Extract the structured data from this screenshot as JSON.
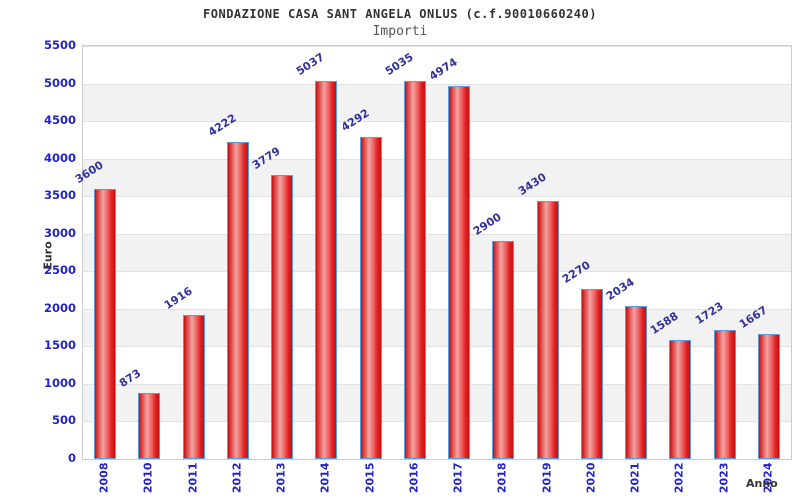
{
  "chart_data": {
    "type": "bar",
    "title": "FONDAZIONE CASA SANT ANGELA ONLUS (c.f.90010660240)",
    "subtitle": "Importi",
    "xlabel": "Anno",
    "ylabel": "Euro",
    "categories": [
      "2008",
      "2010",
      "2011",
      "2012",
      "2013",
      "2014",
      "2015",
      "2016",
      "2017",
      "2018",
      "2019",
      "2020",
      "2021",
      "2022",
      "2023",
      "2024"
    ],
    "values": [
      3600,
      873,
      1916,
      4222,
      3779,
      5037,
      4292,
      5035,
      4974,
      2900,
      3430,
      2270,
      2034,
      1588,
      1723,
      1667
    ],
    "ylim": [
      0,
      5500
    ],
    "ytick_step": 500,
    "yticks": [
      0,
      500,
      1000,
      1500,
      2000,
      2500,
      3000,
      3500,
      4000,
      4500,
      5000,
      5500
    ],
    "grid": true,
    "legend": "none",
    "colors": {
      "bar_edge": "#c41212",
      "bar_highlight": "#f3a2a2",
      "bar_border": "#5b9ce0",
      "axis_tick_label": "#2222cc",
      "data_label": "#32329b",
      "band_alt": "#f2f2f2",
      "band_main": "#ffffff",
      "grid_line": "#e2e2e2",
      "plot_border": "#cccccc",
      "title": "#333333",
      "subtitle": "#555555"
    }
  }
}
